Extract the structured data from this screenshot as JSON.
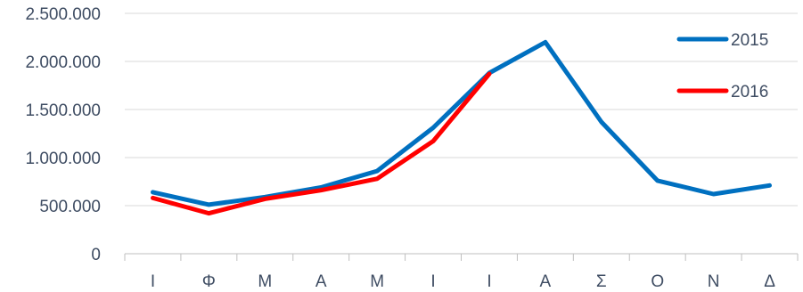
{
  "chart_data": {
    "type": "line",
    "categories": [
      "Ι",
      "Φ",
      "Μ",
      "Α",
      "Μ",
      "Ι",
      "Ι",
      "Α",
      "Σ",
      "Ο",
      "Ν",
      "Δ"
    ],
    "y_ticks": [
      "0",
      "500.000",
      "1.000.000",
      "1.500.000",
      "2.000.000",
      "2.500.000"
    ],
    "ylim": [
      0,
      2500000
    ],
    "grid": true,
    "legend_position": "right",
    "series": [
      {
        "name": "2015",
        "color": "#0070c0",
        "values": [
          640000,
          510000,
          590000,
          690000,
          860000,
          1310000,
          1880000,
          2200000,
          1370000,
          760000,
          620000,
          710000
        ]
      },
      {
        "name": "2016",
        "color": "#ff0000",
        "values": [
          580000,
          420000,
          570000,
          660000,
          780000,
          1170000,
          1870000,
          null,
          null,
          null,
          null,
          null
        ]
      }
    ]
  }
}
